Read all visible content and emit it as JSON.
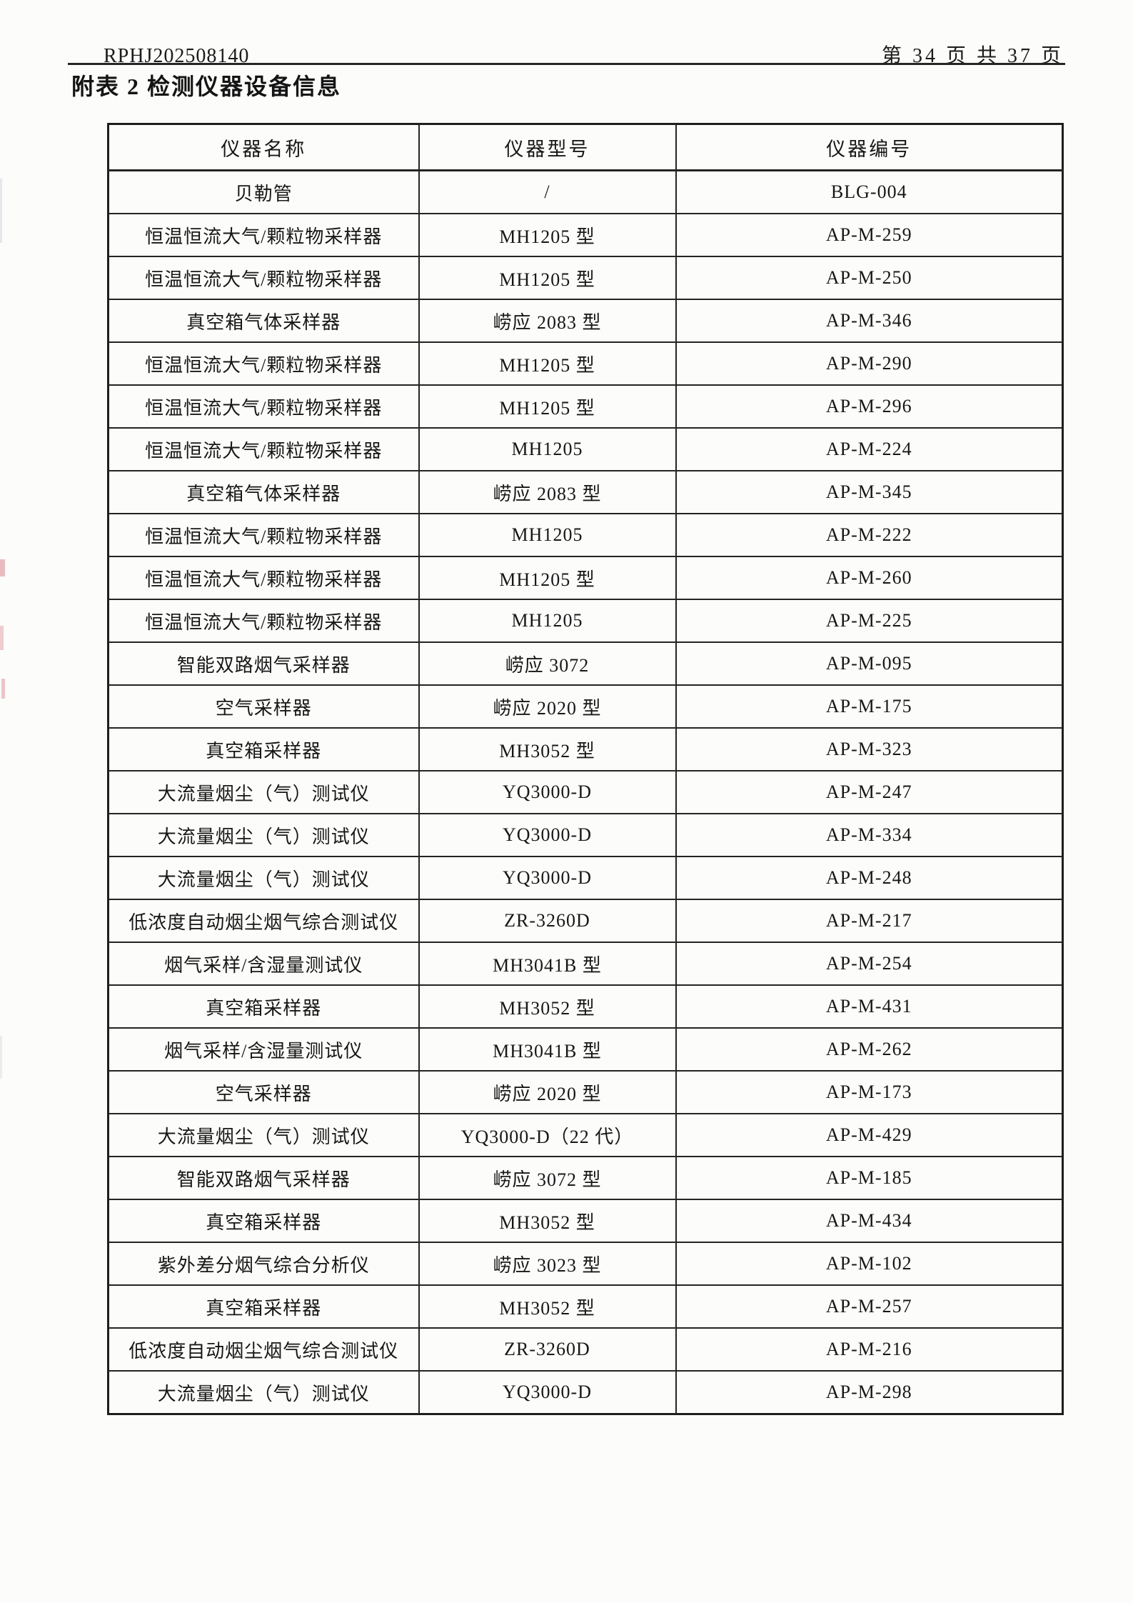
{
  "page_header": {
    "doc_number": "RPHJ202508140",
    "page_indicator": "第 34 页 共 37 页"
  },
  "title": "附表 2  检测仪器设备信息",
  "table": {
    "columns": [
      "仪器名称",
      "仪器型号",
      "仪器编号"
    ],
    "rows": [
      {
        "name": "贝勒管",
        "model": "/",
        "code": "BLG-004"
      },
      {
        "name": "恒温恒流大气/颗粒物采样器",
        "model": "MH1205 型",
        "code": "AP-M-259"
      },
      {
        "name": "恒温恒流大气/颗粒物采样器",
        "model": "MH1205 型",
        "code": "AP-M-250"
      },
      {
        "name": "真空箱气体采样器",
        "model": "崂应 2083 型",
        "code": "AP-M-346"
      },
      {
        "name": "恒温恒流大气/颗粒物采样器",
        "model": "MH1205 型",
        "code": "AP-M-290"
      },
      {
        "name": "恒温恒流大气/颗粒物采样器",
        "model": "MH1205 型",
        "code": "AP-M-296"
      },
      {
        "name": "恒温恒流大气/颗粒物采样器",
        "model": "MH1205",
        "code": "AP-M-224"
      },
      {
        "name": "真空箱气体采样器",
        "model": "崂应 2083 型",
        "code": "AP-M-345"
      },
      {
        "name": "恒温恒流大气/颗粒物采样器",
        "model": "MH1205",
        "code": "AP-M-222"
      },
      {
        "name": "恒温恒流大气/颗粒物采样器",
        "model": "MH1205 型",
        "code": "AP-M-260"
      },
      {
        "name": "恒温恒流大气/颗粒物采样器",
        "model": "MH1205",
        "code": "AP-M-225"
      },
      {
        "name": "智能双路烟气采样器",
        "model": "崂应 3072",
        "code": "AP-M-095"
      },
      {
        "name": "空气采样器",
        "model": "崂应 2020 型",
        "code": "AP-M-175"
      },
      {
        "name": "真空箱采样器",
        "model": "MH3052 型",
        "code": "AP-M-323"
      },
      {
        "name": "大流量烟尘（气）测试仪",
        "model": "YQ3000-D",
        "code": "AP-M-247"
      },
      {
        "name": "大流量烟尘（气）测试仪",
        "model": "YQ3000-D",
        "code": "AP-M-334"
      },
      {
        "name": "大流量烟尘（气）测试仪",
        "model": "YQ3000-D",
        "code": "AP-M-248"
      },
      {
        "name": "低浓度自动烟尘烟气综合测试仪",
        "model": "ZR-3260D",
        "code": "AP-M-217"
      },
      {
        "name": "烟气采样/含湿量测试仪",
        "model": "MH3041B 型",
        "code": "AP-M-254"
      },
      {
        "name": "真空箱采样器",
        "model": "MH3052 型",
        "code": "AP-M-431"
      },
      {
        "name": "烟气采样/含湿量测试仪",
        "model": "MH3041B 型",
        "code": "AP-M-262"
      },
      {
        "name": "空气采样器",
        "model": "崂应 2020 型",
        "code": "AP-M-173"
      },
      {
        "name": "大流量烟尘（气）测试仪",
        "model": "YQ3000-D（22 代）",
        "code": "AP-M-429"
      },
      {
        "name": "智能双路烟气采样器",
        "model": "崂应 3072 型",
        "code": "AP-M-185"
      },
      {
        "name": "真空箱采样器",
        "model": "MH3052 型",
        "code": "AP-M-434"
      },
      {
        "name": "紫外差分烟气综合分析仪",
        "model": "崂应 3023 型",
        "code": "AP-M-102"
      },
      {
        "name": "真空箱采样器",
        "model": "MH3052 型",
        "code": "AP-M-257"
      },
      {
        "name": "低浓度自动烟尘烟气综合测试仪",
        "model": "ZR-3260D",
        "code": "AP-M-216"
      },
      {
        "name": "大流量烟尘（气）测试仪",
        "model": "YQ3000-D",
        "code": "AP-M-298"
      }
    ]
  }
}
